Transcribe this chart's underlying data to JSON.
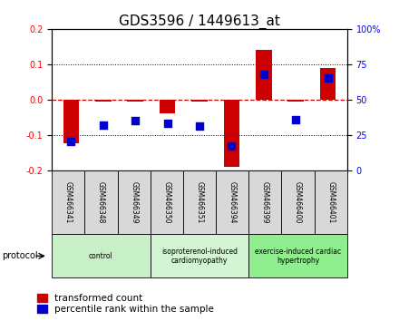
{
  "title": "GDS3596 / 1449613_at",
  "samples": [
    "GSM466341",
    "GSM466348",
    "GSM466349",
    "GSM466350",
    "GSM466351",
    "GSM466394",
    "GSM466399",
    "GSM466400",
    "GSM466401"
  ],
  "transformed_count": [
    -0.125,
    -0.005,
    -0.005,
    -0.04,
    -0.005,
    -0.19,
    0.14,
    -0.005,
    0.09
  ],
  "percentile_rank": [
    20,
    32,
    35,
    33,
    31,
    17,
    68,
    36,
    65
  ],
  "groups": [
    {
      "label": "control",
      "start": 0,
      "end": 3,
      "color": "#c8f0c8"
    },
    {
      "label": "isoproterenol-induced\ncardiomyopathy",
      "start": 3,
      "end": 6,
      "color": "#d4f5d4"
    },
    {
      "label": "exercise-induced cardiac\nhypertrophy",
      "start": 6,
      "end": 9,
      "color": "#90ee90"
    }
  ],
  "ylim_left": [
    -0.2,
    0.2
  ],
  "ylim_right": [
    0,
    100
  ],
  "yticks_left": [
    -0.2,
    -0.1,
    0.0,
    0.1,
    0.2
  ],
  "yticks_right": [
    0,
    25,
    50,
    75,
    100
  ],
  "bar_color": "#cc0000",
  "dot_color": "#0000cc",
  "zero_line_color": "#cc0000",
  "grid_color": "#000000",
  "bg_color": "#ffffff",
  "title_fontsize": 11,
  "tick_fontsize": 7,
  "legend_fontsize": 7.5,
  "bar_width": 0.5
}
